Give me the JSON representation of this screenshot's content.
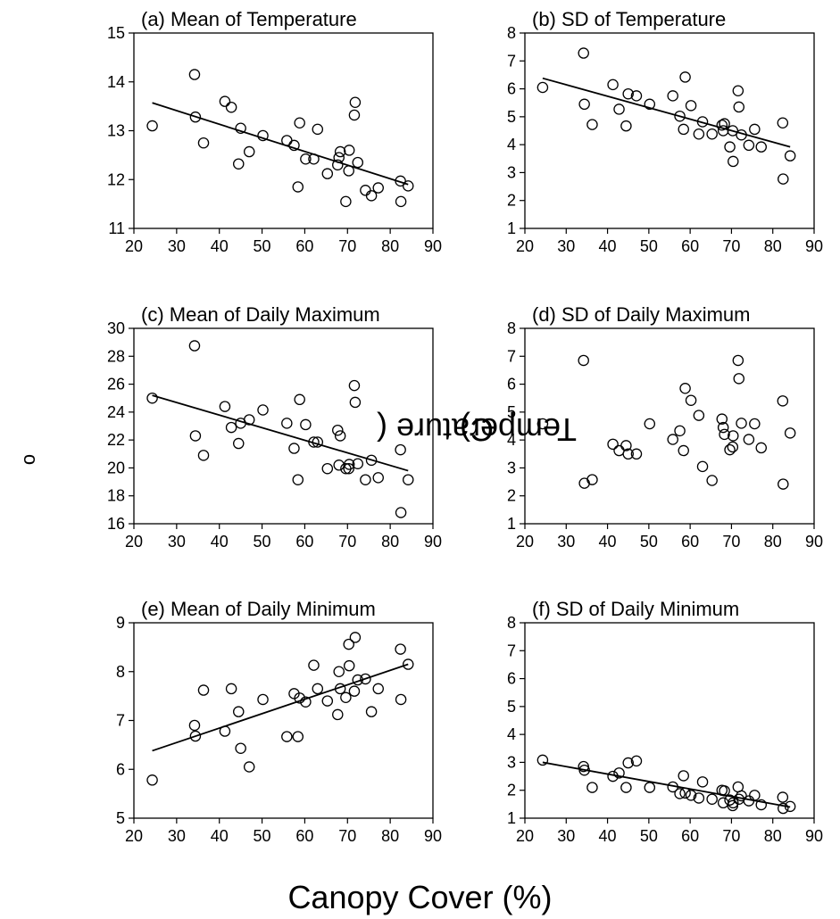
{
  "figure": {
    "ylabel": "Temperature (oC)",
    "ylabel_parts": {
      "pre": "Temperature (",
      "sup": "o",
      "post": "C)"
    },
    "xlabel": "Canopy Cover (%)"
  },
  "chart_data": [
    {
      "type": "scatter",
      "title": "(a) Mean of Temperature",
      "xlabel": "",
      "ylabel": "",
      "xlim": [
        20,
        90
      ],
      "ylim": [
        11,
        15
      ],
      "xticks": [
        20,
        30,
        40,
        50,
        60,
        70,
        80,
        90
      ],
      "yticks": [
        11,
        12,
        13,
        14,
        15
      ],
      "grid": false,
      "points": [
        [
          24.3,
          13.1
        ],
        [
          34.2,
          14.15
        ],
        [
          34.4,
          13.28
        ],
        [
          36.3,
          12.75
        ],
        [
          41.3,
          13.6
        ],
        [
          42.8,
          13.48
        ],
        [
          44.5,
          12.32
        ],
        [
          45,
          13.05
        ],
        [
          47,
          12.57
        ],
        [
          50.2,
          12.9
        ],
        [
          55.8,
          12.8
        ],
        [
          57.5,
          12.7
        ],
        [
          58.4,
          11.85
        ],
        [
          58.8,
          13.16
        ],
        [
          60.2,
          12.42
        ],
        [
          62.1,
          12.42
        ],
        [
          63,
          13.03
        ],
        [
          65.3,
          12.12
        ],
        [
          67.7,
          12.3
        ],
        [
          68,
          12.45
        ],
        [
          68.3,
          12.57
        ],
        [
          69.6,
          11.55
        ],
        [
          70.3,
          12.18
        ],
        [
          70.4,
          12.6
        ],
        [
          71.6,
          13.32
        ],
        [
          71.8,
          13.58
        ],
        [
          72.4,
          12.35
        ],
        [
          74.2,
          11.78
        ],
        [
          75.6,
          11.67
        ],
        [
          77.2,
          11.83
        ],
        [
          82.4,
          11.97
        ],
        [
          82.5,
          11.55
        ],
        [
          84.2,
          11.87
        ]
      ],
      "fit": [
        [
          24.3,
          13.57
        ],
        [
          84.2,
          11.9
        ]
      ]
    },
    {
      "type": "scatter",
      "title": "(b) SD of Temperature",
      "xlabel": "",
      "ylabel": "",
      "xlim": [
        20,
        90
      ],
      "ylim": [
        1,
        8
      ],
      "xticks": [
        20,
        30,
        40,
        50,
        60,
        70,
        80,
        90
      ],
      "yticks": [
        1,
        2,
        3,
        4,
        5,
        6,
        7,
        8
      ],
      "grid": false,
      "points": [
        [
          24.3,
          6.05
        ],
        [
          34.2,
          7.28
        ],
        [
          34.4,
          5.45
        ],
        [
          36.3,
          4.72
        ],
        [
          41.3,
          6.15
        ],
        [
          42.8,
          5.27
        ],
        [
          44.5,
          4.67
        ],
        [
          45,
          5.82
        ],
        [
          47,
          5.75
        ],
        [
          50.2,
          5.45
        ],
        [
          55.8,
          5.75
        ],
        [
          57.5,
          5.02
        ],
        [
          58.4,
          4.55
        ],
        [
          58.8,
          6.42
        ],
        [
          60.2,
          5.4
        ],
        [
          62.1,
          4.38
        ],
        [
          63,
          4.82
        ],
        [
          65.3,
          4.38
        ],
        [
          67.7,
          4.7
        ],
        [
          68,
          4.5
        ],
        [
          68.3,
          4.75
        ],
        [
          69.6,
          3.92
        ],
        [
          70.3,
          4.5
        ],
        [
          70.4,
          3.4
        ],
        [
          71.6,
          5.93
        ],
        [
          71.8,
          5.35
        ],
        [
          72.4,
          4.35
        ],
        [
          74.2,
          3.98
        ],
        [
          75.6,
          4.55
        ],
        [
          77.2,
          3.92
        ],
        [
          82.4,
          4.78
        ],
        [
          82.5,
          2.77
        ],
        [
          84.2,
          3.6
        ]
      ],
      "fit": [
        [
          24.3,
          6.38
        ],
        [
          84.2,
          3.92
        ]
      ]
    },
    {
      "type": "scatter",
      "title": "(c) Mean of Daily Maximum",
      "xlabel": "",
      "ylabel": "",
      "xlim": [
        20,
        90
      ],
      "ylim": [
        16,
        30
      ],
      "xticks": [
        20,
        30,
        40,
        50,
        60,
        70,
        80,
        90
      ],
      "yticks": [
        16,
        18,
        20,
        22,
        24,
        26,
        28,
        30
      ],
      "grid": false,
      "points": [
        [
          24.3,
          25
        ],
        [
          34.2,
          28.75
        ],
        [
          34.4,
          22.3
        ],
        [
          36.3,
          20.9
        ],
        [
          41.3,
          24.4
        ],
        [
          42.8,
          22.9
        ],
        [
          44.5,
          21.75
        ],
        [
          45,
          23.2
        ],
        [
          47,
          23.45
        ],
        [
          50.2,
          24.15
        ],
        [
          55.8,
          23.2
        ],
        [
          57.5,
          21.4
        ],
        [
          58.4,
          19.15
        ],
        [
          58.8,
          24.9
        ],
        [
          60.2,
          23.1
        ],
        [
          62.1,
          21.85
        ],
        [
          63,
          21.85
        ],
        [
          65.3,
          19.95
        ],
        [
          67.7,
          22.7
        ],
        [
          68,
          20.2
        ],
        [
          68.3,
          22.3
        ],
        [
          69.6,
          19.95
        ],
        [
          70.3,
          19.95
        ],
        [
          70.4,
          20.25
        ],
        [
          71.6,
          25.9
        ],
        [
          71.8,
          24.7
        ],
        [
          72.4,
          20.3
        ],
        [
          74.2,
          19.15
        ],
        [
          75.6,
          20.55
        ],
        [
          77.2,
          19.3
        ],
        [
          82.4,
          21.3
        ],
        [
          82.5,
          16.8
        ],
        [
          84.2,
          19.15
        ]
      ],
      "fit": [
        [
          24.3,
          25.2
        ],
        [
          84.2,
          19.8
        ]
      ]
    },
    {
      "type": "scatter",
      "title": "(d) SD of Daily Maximum",
      "xlabel": "",
      "ylabel": "",
      "xlim": [
        20,
        90
      ],
      "ylim": [
        1,
        8
      ],
      "xticks": [
        20,
        30,
        40,
        50,
        60,
        70,
        80,
        90
      ],
      "yticks": [
        1,
        2,
        3,
        4,
        5,
        6,
        7,
        8
      ],
      "grid": false,
      "points": [
        [
          24.3,
          4.58
        ],
        [
          34.2,
          6.85
        ],
        [
          34.4,
          2.45
        ],
        [
          36.3,
          2.58
        ],
        [
          41.3,
          3.85
        ],
        [
          42.8,
          3.62
        ],
        [
          44.5,
          3.8
        ],
        [
          45,
          3.5
        ],
        [
          47,
          3.5
        ],
        [
          50.2,
          4.58
        ],
        [
          55.8,
          4.02
        ],
        [
          57.5,
          4.33
        ],
        [
          58.4,
          3.62
        ],
        [
          58.8,
          5.85
        ],
        [
          60.2,
          5.42
        ],
        [
          62.1,
          4.88
        ],
        [
          63,
          3.05
        ],
        [
          65.3,
          2.55
        ],
        [
          67.7,
          4.75
        ],
        [
          68,
          4.45
        ],
        [
          68.3,
          4.2
        ],
        [
          69.6,
          3.65
        ],
        [
          70.3,
          3.75
        ],
        [
          70.4,
          4.15
        ],
        [
          71.6,
          6.85
        ],
        [
          71.8,
          6.2
        ],
        [
          72.4,
          4.6
        ],
        [
          74.2,
          4.02
        ],
        [
          75.6,
          4.58
        ],
        [
          77.2,
          3.72
        ],
        [
          82.4,
          5.4
        ],
        [
          82.5,
          2.42
        ],
        [
          84.2,
          4.25
        ]
      ],
      "fit": null
    },
    {
      "type": "scatter",
      "title": "(e) Mean of Daily Minimum",
      "xlabel": "",
      "ylabel": "",
      "xlim": [
        20,
        90
      ],
      "ylim": [
        5,
        9
      ],
      "xticks": [
        20,
        30,
        40,
        50,
        60,
        70,
        80,
        90
      ],
      "yticks": [
        5,
        6,
        7,
        8,
        9
      ],
      "grid": false,
      "points": [
        [
          24.3,
          5.78
        ],
        [
          34.2,
          6.9
        ],
        [
          34.4,
          6.68
        ],
        [
          36.3,
          7.62
        ],
        [
          41.3,
          6.78
        ],
        [
          42.8,
          7.65
        ],
        [
          44.5,
          7.18
        ],
        [
          45,
          6.43
        ],
        [
          47,
          6.05
        ],
        [
          50.2,
          7.43
        ],
        [
          55.8,
          6.67
        ],
        [
          57.5,
          7.55
        ],
        [
          58.4,
          6.67
        ],
        [
          58.8,
          7.46
        ],
        [
          60.2,
          7.38
        ],
        [
          62.1,
          8.13
        ],
        [
          63,
          7.65
        ],
        [
          65.3,
          7.4
        ],
        [
          67.7,
          7.12
        ],
        [
          68,
          8
        ],
        [
          68.3,
          7.65
        ],
        [
          69.6,
          7.47
        ],
        [
          70.3,
          8.56
        ],
        [
          70.4,
          8.12
        ],
        [
          71.6,
          7.6
        ],
        [
          71.8,
          8.7
        ],
        [
          72.4,
          7.83
        ],
        [
          74.2,
          7.85
        ],
        [
          75.6,
          7.18
        ],
        [
          77.2,
          7.65
        ],
        [
          82.4,
          8.46
        ],
        [
          82.5,
          7.43
        ],
        [
          84.2,
          8.15
        ]
      ],
      "fit": [
        [
          24.3,
          6.38
        ],
        [
          84.2,
          8.15
        ]
      ]
    },
    {
      "type": "scatter",
      "title": "(f) SD of Daily Minimum",
      "xlabel": "",
      "ylabel": "",
      "xlim": [
        20,
        90
      ],
      "ylim": [
        1,
        8
      ],
      "xticks": [
        20,
        30,
        40,
        50,
        60,
        70,
        80,
        90
      ],
      "yticks": [
        1,
        2,
        3,
        4,
        5,
        6,
        7,
        8
      ],
      "grid": false,
      "points": [
        [
          24.3,
          3.08
        ],
        [
          34.2,
          2.85
        ],
        [
          34.4,
          2.72
        ],
        [
          36.3,
          2.1
        ],
        [
          41.3,
          2.5
        ],
        [
          42.8,
          2.62
        ],
        [
          44.5,
          2.1
        ],
        [
          45,
          2.98
        ],
        [
          47,
          3.05
        ],
        [
          50.2,
          2.1
        ],
        [
          55.8,
          2.12
        ],
        [
          57.5,
          1.88
        ],
        [
          58.4,
          2.52
        ],
        [
          58.8,
          1.9
        ],
        [
          60.2,
          1.82
        ],
        [
          62.1,
          1.72
        ],
        [
          63,
          2.3
        ],
        [
          65.3,
          1.68
        ],
        [
          67.7,
          2.0
        ],
        [
          68,
          1.55
        ],
        [
          68.3,
          1.98
        ],
        [
          69.6,
          1.65
        ],
        [
          70.3,
          1.45
        ],
        [
          70.4,
          1.55
        ],
        [
          71.6,
          2.12
        ],
        [
          71.8,
          1.68
        ],
        [
          72.4,
          1.8
        ],
        [
          74.2,
          1.62
        ],
        [
          75.6,
          1.82
        ],
        [
          77.2,
          1.48
        ],
        [
          82.4,
          1.75
        ],
        [
          82.5,
          1.35
        ],
        [
          84.2,
          1.42
        ]
      ],
      "fit": [
        [
          24.3,
          3.0
        ],
        [
          84.2,
          1.4
        ]
      ]
    }
  ]
}
